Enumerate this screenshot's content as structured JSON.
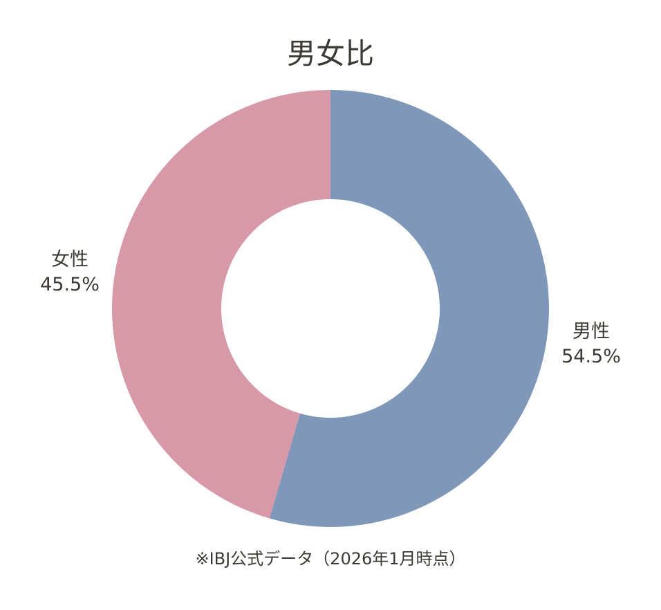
{
  "chart_data": {
    "type": "pie",
    "donut": true,
    "title": "男女比",
    "slices": [
      {
        "label": "男性",
        "value": 54.5,
        "display": "54.5%",
        "color": "#7f98b9"
      },
      {
        "label": "女性",
        "value": 45.5,
        "display": "45.5%",
        "color": "#d799a8"
      }
    ],
    "start": "top",
    "direction": "clockwise",
    "footnote": "※IBJ公式データ（2026年1月時点）"
  }
}
